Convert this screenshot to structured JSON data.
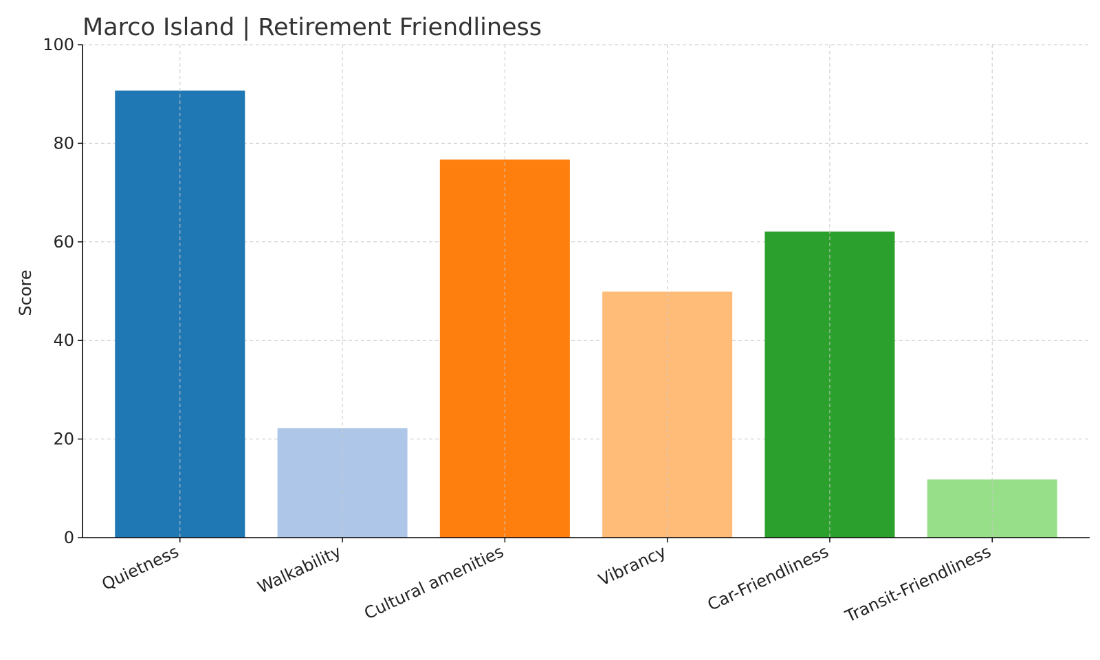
{
  "chart_data": {
    "type": "bar",
    "title": "Marco Island | Retirement Friendliness",
    "xlabel": "",
    "ylabel": "Score",
    "ylim": [
      0,
      100
    ],
    "yticks": [
      0,
      20,
      40,
      60,
      80,
      100
    ],
    "grid": true,
    "categories": [
      "Quietness",
      "Walkability",
      "Cultural amenities",
      "Vibrancy",
      "Car-Friendliness",
      "Transit-Friendliness"
    ],
    "values": [
      90.7,
      22.2,
      76.7,
      49.9,
      62.1,
      11.8
    ],
    "colors": [
      "#1f77b4",
      "#aec7e8",
      "#ff7f0e",
      "#ffbb78",
      "#2ca02c",
      "#98df8a"
    ]
  }
}
